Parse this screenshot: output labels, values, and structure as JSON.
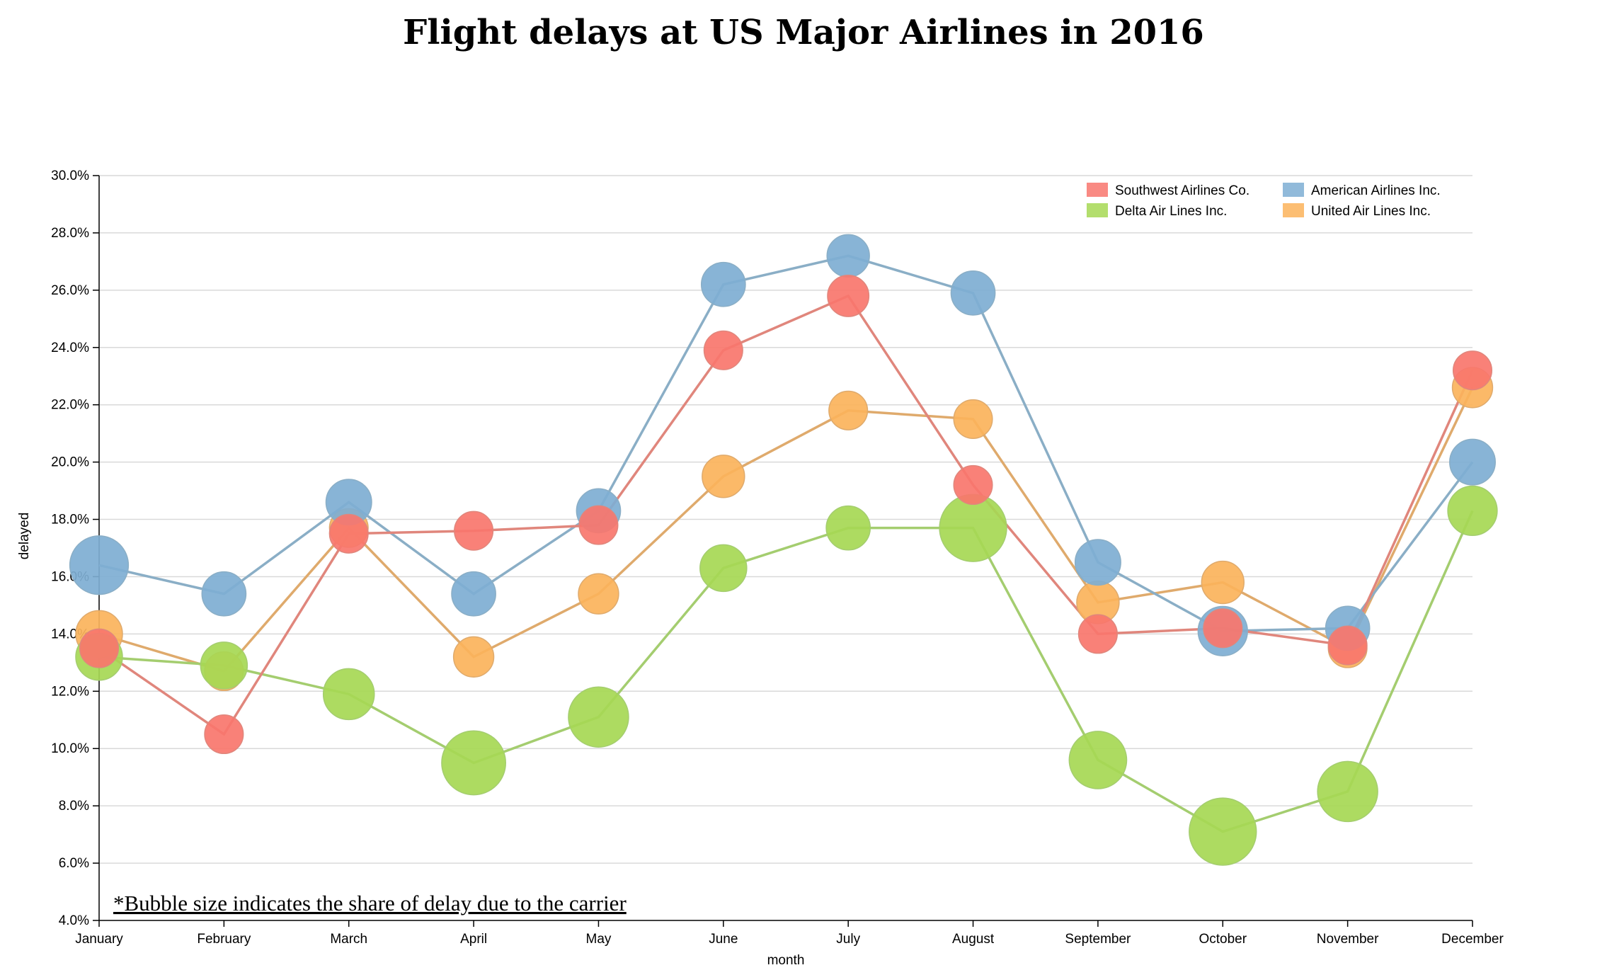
{
  "chart_data": {
    "type": "line",
    "title": "Flight delays at US Major Airlines in 2016",
    "xlabel": "month",
    "ylabel": "delayed",
    "ylim": [
      4.0,
      30.0
    ],
    "y_ticks": [
      "4.0%",
      "6.0%",
      "8.0%",
      "10.0%",
      "12.0%",
      "14.0%",
      "16.0%",
      "18.0%",
      "20.0%",
      "22.0%",
      "24.0%",
      "26.0%",
      "28.0%",
      "30.0%"
    ],
    "grid": true,
    "legend_position": "top-right",
    "note": "*Bubble size indicates the share of delay due to the carrier",
    "categories": [
      "January",
      "February",
      "March",
      "April",
      "May",
      "June",
      "July",
      "August",
      "September",
      "October",
      "November",
      "December"
    ],
    "series": [
      {
        "name": "Southwest Airlines Co.",
        "color": "#f8766d",
        "line_color": "#e0867c",
        "values": [
          13.5,
          10.5,
          17.5,
          17.6,
          17.8,
          23.9,
          25.8,
          19.2,
          14.0,
          14.2,
          13.6,
          23.2
        ],
        "bubble_share": [
          0.35,
          0.35,
          0.35,
          0.35,
          0.35,
          0.35,
          0.4,
          0.35,
          0.35,
          0.35,
          0.35,
          0.35
        ]
      },
      {
        "name": "American Airlines Inc.",
        "color": "#7eaed3",
        "line_color": "#8aaec6",
        "values": [
          16.4,
          15.4,
          18.6,
          15.4,
          18.3,
          26.2,
          27.2,
          25.9,
          16.5,
          14.1,
          14.2,
          20.0
        ],
        "bubble_share": [
          0.72,
          0.45,
          0.48,
          0.45,
          0.45,
          0.45,
          0.42,
          0.45,
          0.48,
          0.55,
          0.45,
          0.48
        ]
      },
      {
        "name": "Delta Air Lines Inc.",
        "color": "#a6d854",
        "line_color": "#a4cd6f",
        "values": [
          13.2,
          12.9,
          11.9,
          9.5,
          11.1,
          16.3,
          17.7,
          17.7,
          9.6,
          7.1,
          8.5,
          18.3
        ],
        "bubble_share": [
          0.5,
          0.5,
          0.58,
          0.82,
          0.75,
          0.5,
          0.45,
          0.88,
          0.7,
          0.88,
          0.75,
          0.55
        ]
      },
      {
        "name": "United Air Lines Inc.",
        "color": "#fbb35b",
        "line_color": "#dfaa6c",
        "values": [
          14.0,
          12.7,
          17.7,
          13.2,
          15.4,
          19.5,
          21.8,
          21.5,
          15.1,
          15.8,
          13.5,
          22.6
        ],
        "bubble_share": [
          0.5,
          0.35,
          0.35,
          0.38,
          0.38,
          0.42,
          0.35,
          0.35,
          0.42,
          0.42,
          0.35,
          0.38
        ]
      }
    ],
    "draw_order": [
      "United Air Lines Inc.",
      "Delta Air Lines Inc.",
      "American Airlines Inc.",
      "Southwest Airlines Co."
    ]
  }
}
